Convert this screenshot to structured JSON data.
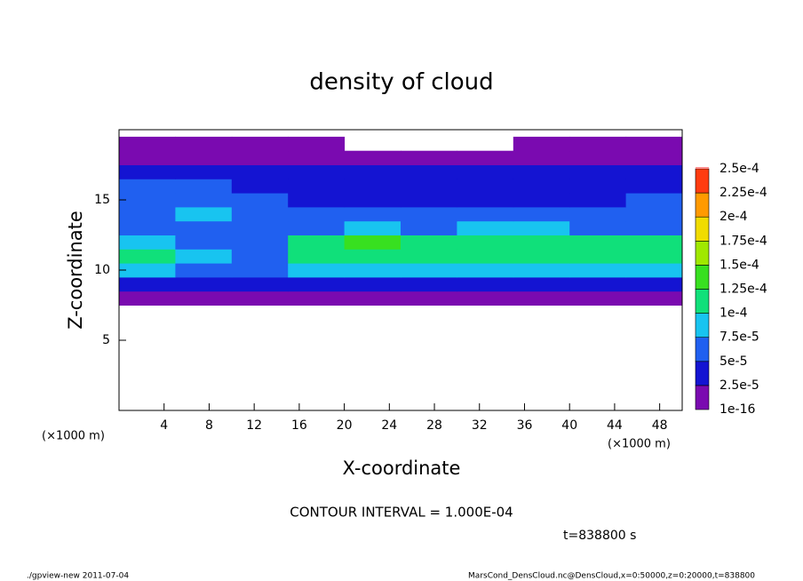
{
  "chart_data": {
    "type": "heatmap",
    "title": "density of cloud",
    "x_label": "X-coordinate",
    "y_label": "Z-coordinate",
    "x_unit": "(×1000 m)",
    "y_unit": "(×1000 m)",
    "xlim": [
      0,
      50
    ],
    "ylim": [
      0,
      20
    ],
    "xticks": [
      4,
      8,
      12,
      16,
      20,
      24,
      28,
      32,
      36,
      40,
      44,
      48
    ],
    "yticks": [
      5,
      10,
      15
    ],
    "xbins": [
      0,
      5,
      10,
      15,
      20,
      25,
      30,
      35,
      40,
      45,
      50
    ],
    "ybins": [
      7.5,
      8.5,
      9.5,
      10.5,
      11.5,
      12.5,
      13.5,
      14.5,
      15.5,
      16.5,
      17.5,
      18.5,
      19.5
    ],
    "values": [
      [
        1e-16,
        1e-16,
        1e-16,
        1e-16,
        1e-16,
        1e-16,
        1e-16,
        1e-16,
        1e-16,
        1e-16
      ],
      [
        3e-05,
        3e-05,
        3e-05,
        3e-05,
        3e-05,
        3e-05,
        3e-05,
        3e-05,
        3e-05,
        3e-05
      ],
      [
        8e-05,
        6e-05,
        6e-05,
        8e-05,
        8e-05,
        8e-05,
        8e-05,
        8e-05,
        8e-05,
        8e-05
      ],
      [
        0.000105,
        8e-05,
        7e-05,
        0.000105,
        0.00011,
        0.000105,
        0.000105,
        0.00011,
        0.000105,
        0.00011
      ],
      [
        8e-05,
        7e-05,
        6e-05,
        0.000105,
        0.00013,
        0.00012,
        0.00011,
        0.00011,
        0.000105,
        0.000105
      ],
      [
        7e-05,
        7e-05,
        5.5e-05,
        6e-05,
        8e-05,
        7e-05,
        8e-05,
        8e-05,
        7e-05,
        6e-05
      ],
      [
        7e-05,
        8e-05,
        6e-05,
        5.5e-05,
        5e-05,
        5e-05,
        5e-05,
        5e-05,
        5e-05,
        5e-05
      ],
      [
        6e-05,
        7e-05,
        5e-05,
        4.5e-05,
        4e-05,
        4e-05,
        4e-05,
        4.5e-05,
        4.5e-05,
        5e-05
      ],
      [
        5e-05,
        5e-05,
        4e-05,
        3.5e-05,
        3.5e-05,
        3.5e-05,
        3.5e-05,
        3.5e-05,
        3.5e-05,
        4e-05
      ],
      [
        3e-05,
        3e-05,
        3e-05,
        3e-05,
        3e-05,
        3e-05,
        3e-05,
        3e-05,
        3e-05,
        3e-05
      ],
      [
        1e-16,
        1e-16,
        1e-16,
        1e-16,
        1e-16,
        1e-16,
        1e-16,
        1e-16,
        1e-16,
        1e-16
      ],
      [
        1e-16,
        1e-16,
        1e-16,
        1e-16,
        null,
        null,
        null,
        1e-16,
        1e-16,
        1e-16
      ]
    ],
    "colorbar": {
      "levels": [
        {
          "value": 1e-16,
          "label": "1e-16"
        },
        {
          "value": 2.5e-05,
          "label": "2.5e-5"
        },
        {
          "value": 5e-05,
          "label": "5e-5"
        },
        {
          "value": 7.5e-05,
          "label": "7.5e-5"
        },
        {
          "value": 0.0001,
          "label": "1e-4"
        },
        {
          "value": 0.000125,
          "label": "1.25e-4"
        },
        {
          "value": 0.00015,
          "label": "1.5e-4"
        },
        {
          "value": 0.000175,
          "label": "1.75e-4"
        },
        {
          "value": 0.0002,
          "label": "2e-4"
        },
        {
          "value": 0.000225,
          "label": "2.25e-4"
        },
        {
          "value": 0.00025,
          "label": "2.5e-4"
        }
      ],
      "colors": [
        "#7a0ab0",
        "#1414d2",
        "#2060f0",
        "#18c4f0",
        "#10e07a",
        "#38e020",
        "#a0e800",
        "#f0dc00",
        "#ff9a00",
        "#ff3c10"
      ]
    },
    "contour_note": "CONTOUR INTERVAL = 1.000E-04",
    "time_note": "t=838800 s",
    "footer_left": "./gpview-new  2011-07-04",
    "footer_right": "MarsCond_DensCloud.nc@DensCloud,x=0:50000,z=0:20000,t=838800"
  }
}
